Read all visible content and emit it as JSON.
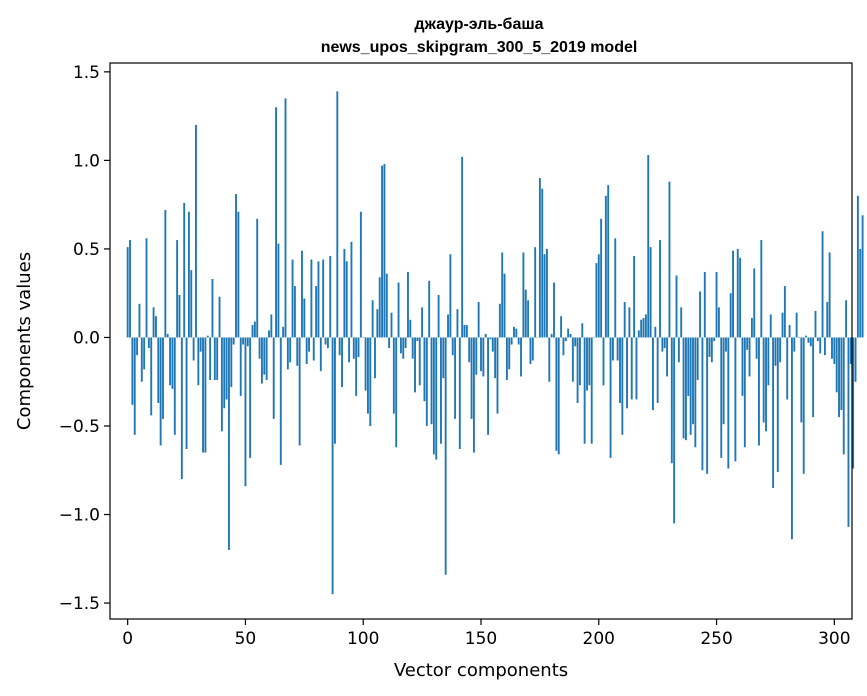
{
  "chart_data": {
    "type": "bar",
    "title": "джаур-эль-баша",
    "subtitle": "news_upos_skipgram_300_5_2019 model",
    "xlabel": "Vector components",
    "ylabel": "Components values",
    "xlim": [
      -7.5,
      307.5
    ],
    "ylim": [
      -1.59,
      1.55
    ],
    "x_ticks": [
      0,
      50,
      100,
      150,
      200,
      250,
      300
    ],
    "x_tick_labels": [
      "0",
      "50",
      "100",
      "150",
      "200",
      "250",
      "300"
    ],
    "y_ticks": [
      -1.5,
      -1.0,
      -0.5,
      0.0,
      0.5,
      1.0,
      1.5
    ],
    "y_tick_labels": [
      "−1.5",
      "−1.0",
      "−0.5",
      "0.0",
      "0.5",
      "1.0",
      "1.5"
    ],
    "bar_color": "#1f77b4",
    "values": [
      0.51,
      0.55,
      -0.38,
      -0.55,
      -0.1,
      0.19,
      -0.25,
      -0.18,
      0.56,
      -0.06,
      -0.44,
      0.17,
      0.12,
      -0.37,
      -0.61,
      -0.46,
      0.72,
      0.02,
      -0.27,
      -0.29,
      -0.55,
      0.55,
      0.24,
      -0.8,
      0.76,
      -0.63,
      0.71,
      0.38,
      -0.13,
      1.2,
      -0.27,
      -0.08,
      -0.65,
      -0.65,
      0.01,
      -0.24,
      0.33,
      -0.24,
      -0.24,
      0.23,
      -0.53,
      -0.4,
      -0.35,
      -1.2,
      -0.28,
      -0.04,
      0.81,
      0.71,
      -0.33,
      -0.04,
      -0.84,
      -0.05,
      -0.68,
      0.07,
      0.09,
      0.67,
      -0.12,
      -0.26,
      -0.21,
      -0.24,
      0.04,
      0.13,
      -0.46,
      1.3,
      0.53,
      -0.72,
      0.06,
      1.35,
      -0.18,
      -0.14,
      0.44,
      0.29,
      -0.16,
      -0.61,
      0.49,
      0.22,
      -0.15,
      -0.08,
      0.44,
      -0.13,
      0.29,
      0.43,
      -0.19,
      0.44,
      -0.04,
      -0.06,
      0.46,
      -1.45,
      -0.6,
      1.39,
      -0.1,
      -0.28,
      0.5,
      0.43,
      -0.14,
      0.54,
      -0.12,
      -0.33,
      -0.11,
      0.71,
      0.0,
      -0.3,
      -0.43,
      -0.5,
      0.21,
      -0.23,
      0.16,
      0.34,
      0.97,
      0.98,
      0.36,
      -0.06,
      0.14,
      -0.43,
      -0.62,
      0.31,
      -0.09,
      -0.12,
      -0.06,
      0.37,
      0.1,
      -0.12,
      -0.31,
      -0.02,
      -0.27,
      0.17,
      -0.36,
      -0.5,
      0.32,
      -0.49,
      -0.66,
      -0.69,
      0.24,
      -0.6,
      -0.23,
      -1.34,
      0.13,
      0.47,
      -0.1,
      -0.46,
      0.16,
      -0.63,
      1.02,
      0.07,
      0.07,
      -0.14,
      -0.46,
      -0.65,
      -0.21,
      0.2,
      -0.19,
      -0.22,
      0.02,
      -0.55,
      -0.01,
      -0.08,
      -0.23,
      -0.43,
      0.19,
      0.48,
      0.36,
      -0.24,
      -0.18,
      -0.04,
      0.06,
      0.05,
      -0.04,
      -0.22,
      0.48,
      0.27,
      0.21,
      -0.15,
      -0.13,
      0.51,
      0.0,
      0.9,
      0.84,
      0.47,
      0.5,
      -0.25,
      0.02,
      0.31,
      -0.64,
      -0.66,
      0.12,
      -0.1,
      -0.02,
      0.05,
      0.02,
      -0.25,
      -0.05,
      -0.37,
      -0.27,
      0.08,
      -0.6,
      -0.3,
      -0.27,
      -0.6,
      0.0,
      0.42,
      0.47,
      0.67,
      -0.27,
      0.8,
      0.86,
      -0.68,
      -0.13,
      0.56,
      -0.13,
      -0.37,
      -0.55,
      0.2,
      -0.4,
      0.17,
      -0.35,
      0.46,
      -0.35,
      0.04,
      0.1,
      0.11,
      0.13,
      1.03,
      0.51,
      -0.41,
      0.06,
      -0.37,
      0.55,
      -0.08,
      -0.06,
      -0.22,
      0.88,
      -0.71,
      -1.05,
      0.35,
      -0.14,
      0.17,
      -0.57,
      -0.58,
      -0.33,
      -0.55,
      -0.49,
      -0.62,
      -0.24,
      0.26,
      -0.75,
      0.37,
      -0.77,
      -0.11,
      -0.14,
      -0.02,
      0.37,
      0.17,
      -0.68,
      -0.49,
      -0.08,
      -0.74,
      0.25,
      0.49,
      -0.7,
      0.5,
      0.45,
      -0.33,
      -0.62,
      -0.07,
      -0.22,
      0.11,
      0.39,
      -0.12,
      -0.61,
      0.55,
      -0.48,
      -0.53,
      -0.27,
      0.13,
      -0.85,
      -0.16,
      -0.76,
      -0.14,
      0.14,
      0.29,
      -0.35,
      0.07,
      -1.14,
      -0.08,
      0.14,
      0.0,
      -0.48,
      -0.77,
      0.01,
      -0.03,
      -0.05,
      -0.45,
      0.15,
      -0.02,
      -0.09,
      0.6,
      -0.1,
      0.2,
      0.48,
      -0.12,
      -0.15,
      -0.31,
      -0.45,
      -0.41,
      -0.66,
      0.21,
      -1.07,
      -0.15,
      -0.74,
      -0.25,
      0.8,
      0.5,
      0.69
    ]
  }
}
